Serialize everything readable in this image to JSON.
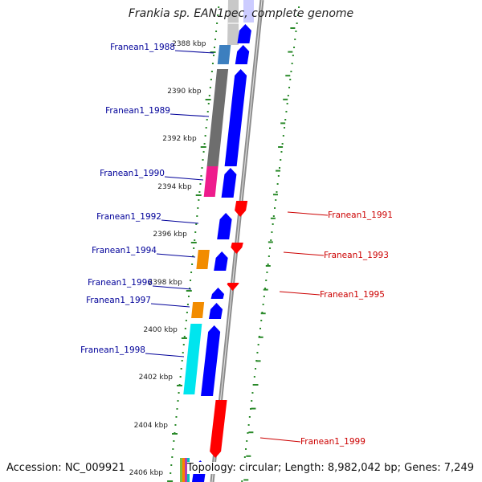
{
  "title": "Frankia sp. EAN1pec, complete genome",
  "accession_text": "Accession: NC_009921",
  "summary_text": "Topology: circular; Length: 8,982,042 bp; Genes: 7,249",
  "colors": {
    "backbone": "#8c8c8c",
    "forward_cds": "#0000ff",
    "reverse_cds": "#ff0000",
    "tick": "#2a8a2a",
    "left_label": "#000099",
    "right_label": "#cc0000"
  },
  "ticks": [
    "2388 kbp",
    "2390 kbp",
    "2392 kbp",
    "2394 kbp",
    "2396 kbp",
    "2398 kbp",
    "2400 kbp",
    "2402 kbp",
    "2404 kbp",
    "2406 kbp"
  ],
  "genes_left": [
    {
      "name": "Franean1_1988",
      "cog_color": "#3c7fbf"
    },
    {
      "name": "Franean1_1989",
      "cog_color": "#6e6e6e"
    },
    {
      "name": "Franean1_1990",
      "cog_color": "#ee1c8c"
    },
    {
      "name": "Franean1_1992",
      "cog_color": ""
    },
    {
      "name": "Franean1_1994",
      "cog_color": "#f28c00"
    },
    {
      "name": "Franean1_1996",
      "cog_color": ""
    },
    {
      "name": "Franean1_1997",
      "cog_color": "#f28c00"
    },
    {
      "name": "Franean1_1998",
      "cog_color": "#00e5ee"
    }
  ],
  "genes_right": [
    {
      "name": "Franean1_1991"
    },
    {
      "name": "Franean1_1993"
    },
    {
      "name": "Franean1_1995"
    },
    {
      "name": "Franean1_1999"
    }
  ]
}
